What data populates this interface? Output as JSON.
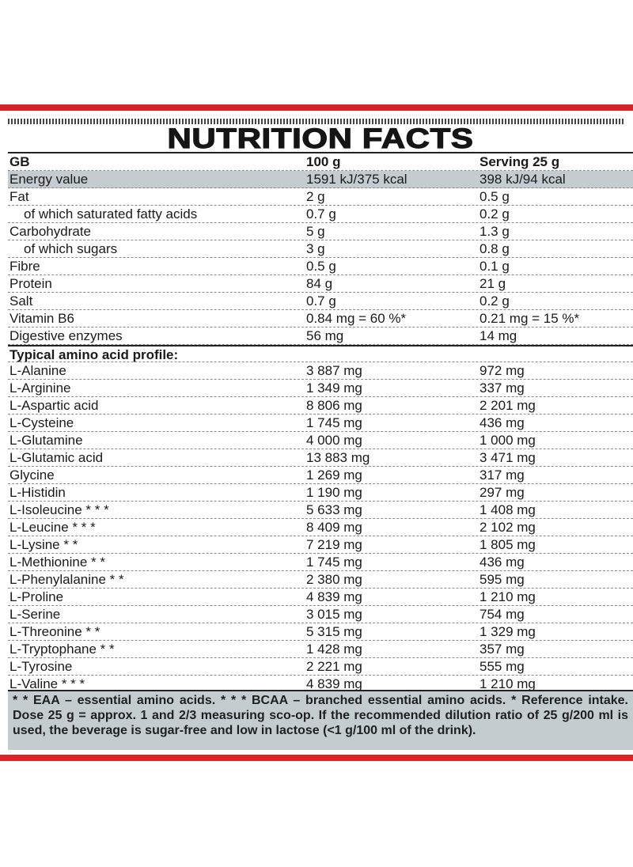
{
  "title": "NUTRITION FACTS",
  "header": {
    "col1": "GB",
    "col2": "100 g",
    "col3": "Serving 25 g"
  },
  "nutrients": [
    {
      "name": "Energy value",
      "per100": "1591 kJ/375 kcal",
      "serving": "398 kJ/94 kcal",
      "shaded": true,
      "indent": false
    },
    {
      "name": "Fat",
      "per100": "2 g",
      "serving": "0.5 g",
      "indent": false
    },
    {
      "name": "of which saturated fatty acids",
      "per100": "0.7 g",
      "serving": "0.2 g",
      "indent": true
    },
    {
      "name": "Carbohydrate",
      "per100": "5 g",
      "serving": "1.3 g",
      "indent": false
    },
    {
      "name": "of which sugars",
      "per100": "3 g",
      "serving": "0.8 g",
      "indent": true
    },
    {
      "name": "Fibre",
      "per100": "0.5 g",
      "serving": "0.1 g",
      "indent": false
    },
    {
      "name": "Protein",
      "per100": "84 g",
      "serving": "21 g",
      "indent": false
    },
    {
      "name": "Salt",
      "per100": "0.7 g",
      "serving": "0.2 g",
      "indent": false
    },
    {
      "name": "Vitamin B6",
      "per100": "0.84 mg = 60 %*",
      "serving": "0.21 mg = 15 %*",
      "indent": false
    },
    {
      "name": "Digestive enzymes",
      "per100": "56 mg",
      "serving": "14 mg",
      "indent": false
    }
  ],
  "amino_header": "Typical amino acid profile:",
  "amino_acids": [
    {
      "name": "L-Alanine",
      "per100": "3 887 mg",
      "serving": "972 mg"
    },
    {
      "name": "L-Arginine",
      "per100": "1 349 mg",
      "serving": "337 mg"
    },
    {
      "name": "L-Aspartic acid",
      "per100": "8 806 mg",
      "serving": "2 201 mg"
    },
    {
      "name": "L-Cysteine",
      "per100": "1 745 mg",
      "serving": "436 mg"
    },
    {
      "name": "L-Glutamine",
      "per100": "4 000 mg",
      "serving": "1 000 mg"
    },
    {
      "name": "L-Glutamic acid",
      "per100": "13 883 mg",
      "serving": "3 471 mg"
    },
    {
      "name": "Glycine",
      "per100": "1 269 mg",
      "serving": "317 mg"
    },
    {
      "name": "L-Histidin",
      "per100": "1 190 mg",
      "serving": "297 mg"
    },
    {
      "name": "L-Isoleucine * * *",
      "per100": "5 633 mg",
      "serving": "1 408 mg"
    },
    {
      "name": "L-Leucine * * *",
      "per100": "8 409 mg",
      "serving": "2 102 mg"
    },
    {
      "name": "L-Lysine * *",
      "per100": "7 219 mg",
      "serving": "1 805 mg"
    },
    {
      "name": "L-Methionine * *",
      "per100": "1 745 mg",
      "serving": "436 mg"
    },
    {
      "name": "L-Phenylalanine * *",
      "per100": "2 380 mg",
      "serving": "595 mg"
    },
    {
      "name": "L-Proline",
      "per100": "4 839 mg",
      "serving": "1 210 mg"
    },
    {
      "name": "L-Serine",
      "per100": "3 015 mg",
      "serving": "754 mg"
    },
    {
      "name": "L-Threonine * *",
      "per100": "5 315 mg",
      "serving": "1 329 mg"
    },
    {
      "name": "L-Tryptophane * *",
      "per100": "1 428 mg",
      "serving": "357 mg"
    },
    {
      "name": "L-Tyrosine",
      "per100": "2 221 mg",
      "serving": "555 mg"
    },
    {
      "name": "L-Valine * * *",
      "per100": "4 839 mg",
      "serving": "1 210 mg"
    }
  ],
  "footnote": "* * EAA – essential amino acids. * * * BCAA – branched essential amino acids. * Reference intake. Dose 25 g = approx. 1 and 2/3 measuring sco-op. If the recommended dilution ratio of 25 g/200 ml is used, the beverage is sugar-free and low in lactose (<1 g/100 ml of the drink).",
  "colors": {
    "accent_red": "#d7262b",
    "shade_gray": "#c5ccd0"
  }
}
